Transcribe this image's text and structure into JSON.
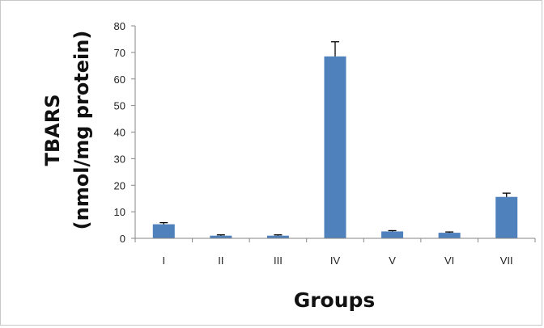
{
  "chart_data": {
    "type": "bar",
    "title": "",
    "xlabel": "Groups",
    "ylabel": [
      "TBARS",
      "(nmol/mg protein)"
    ],
    "categories": [
      "I",
      "II",
      "III",
      "IV",
      "V",
      "VI",
      "VII"
    ],
    "series": [
      {
        "values": [
          5.3,
          1.0,
          1.0,
          68.5,
          2.6,
          2.1,
          15.6
        ],
        "error": [
          0.6,
          0.3,
          0.3,
          5.5,
          0.3,
          0.3,
          1.4
        ],
        "color": "#4f81bd"
      }
    ],
    "ylim": [
      0,
      80
    ],
    "yticks": [
      0,
      10,
      20,
      30,
      40,
      50,
      60,
      70,
      80
    ],
    "grid": false,
    "legend": "none"
  }
}
